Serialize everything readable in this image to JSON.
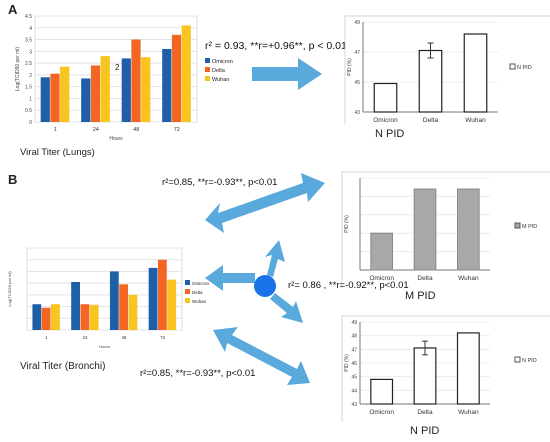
{
  "panels": {
    "a": {
      "label": "A",
      "stat": "r² =  0.93, **r=+0.96**,  p < 0.01",
      "caption_left": "Viral Titer  (Lungs)",
      "caption_right": "N PID",
      "stray_mark": "2"
    },
    "b": {
      "label": "B",
      "stat_top": "r²=0.85,  **r=-0.93**, p<0.01",
      "stat_mid": "r²= 0.86 , **r=-0.92**, p<0.01",
      "stat_bottom": "r²=0.85,  **r=-0.93**, p<0.01",
      "caption_left": "Viral Titer (Bronchi)",
      "caption_mid": "M PID",
      "caption_right": "N PID"
    }
  },
  "colors": {
    "omicron": "#1f5fa8",
    "delta": "#f26522",
    "wuhan": "#f7c51e",
    "arrow": "#5aa9dd",
    "grey_bar": "#a8a8a8",
    "dot": "#1a73e8"
  },
  "chart_data": [
    {
      "type": "bar",
      "id": "lung-titer",
      "categories": [
        "1",
        "24",
        "48",
        "72"
      ],
      "series": [
        {
          "name": "Omicron",
          "values": [
            1.9,
            1.85,
            2.7,
            3.1
          ]
        },
        {
          "name": "Delta",
          "values": [
            2.05,
            2.4,
            3.5,
            3.7
          ]
        },
        {
          "name": "Wuhan",
          "values": [
            2.35,
            2.8,
            2.75,
            4.1
          ]
        }
      ],
      "xlabel": "Hours",
      "ylabel": "Log(TCID50 per ml)",
      "ylim": [
        0,
        4.5
      ],
      "yticks": [
        "0",
        "0.5",
        "1",
        "1.5",
        "2",
        "2.5",
        "3",
        "3.5",
        "4",
        "4.5"
      ],
      "legend": "right",
      "grid": true
    },
    {
      "type": "bar",
      "id": "lung-npid",
      "categories": [
        "Omicron",
        "Delta",
        "Wuhan"
      ],
      "values": [
        44.9,
        47.1,
        48.2
      ],
      "errors": [
        0,
        0.5,
        0
      ],
      "ylabel": "PID (%)",
      "ylim": [
        43,
        49
      ],
      "yticks": [
        "43",
        "45",
        "47",
        "49"
      ],
      "legend_entries": [
        "N PID"
      ],
      "legend": "right",
      "bar_style": "outline"
    },
    {
      "type": "bar",
      "id": "bronchi-titer",
      "categories": [
        "1",
        "24",
        "48",
        "72"
      ],
      "series": [
        {
          "name": "Omicron",
          "values": [
            2.2,
            4.1,
            5.0,
            5.3
          ]
        },
        {
          "name": "Delta",
          "values": [
            1.9,
            2.2,
            3.9,
            6.0
          ]
        },
        {
          "name": "Wuhan",
          "values": [
            2.2,
            2.15,
            3.0,
            4.3
          ]
        }
      ],
      "xlabel": "Hours",
      "ylabel": "Log(TCID50 per ml)",
      "ylim": [
        0,
        7
      ],
      "legend": "right",
      "grid": true
    },
    {
      "type": "bar",
      "id": "bronchi-mpid",
      "categories": [
        "Omicron",
        "Delta",
        "Wuhan"
      ],
      "values": [
        2.0,
        4.4,
        4.4
      ],
      "ylabel": "PID (%)",
      "ylim": [
        0,
        5
      ],
      "legend_entries": [
        "M PID"
      ],
      "legend": "right",
      "bar_style": "filled"
    },
    {
      "type": "bar",
      "id": "bronchi-npid",
      "categories": [
        "Omicron",
        "Delta",
        "Wuhan"
      ],
      "values": [
        44.8,
        47.1,
        48.2
      ],
      "errors": [
        0,
        0.5,
        0
      ],
      "ylabel": "PID (%)",
      "ylim": [
        43,
        49
      ],
      "yticks": [
        "43",
        "44",
        "45",
        "46",
        "47",
        "48",
        "49"
      ],
      "legend_entries": [
        "N PID"
      ],
      "legend": "right",
      "bar_style": "outline"
    }
  ]
}
